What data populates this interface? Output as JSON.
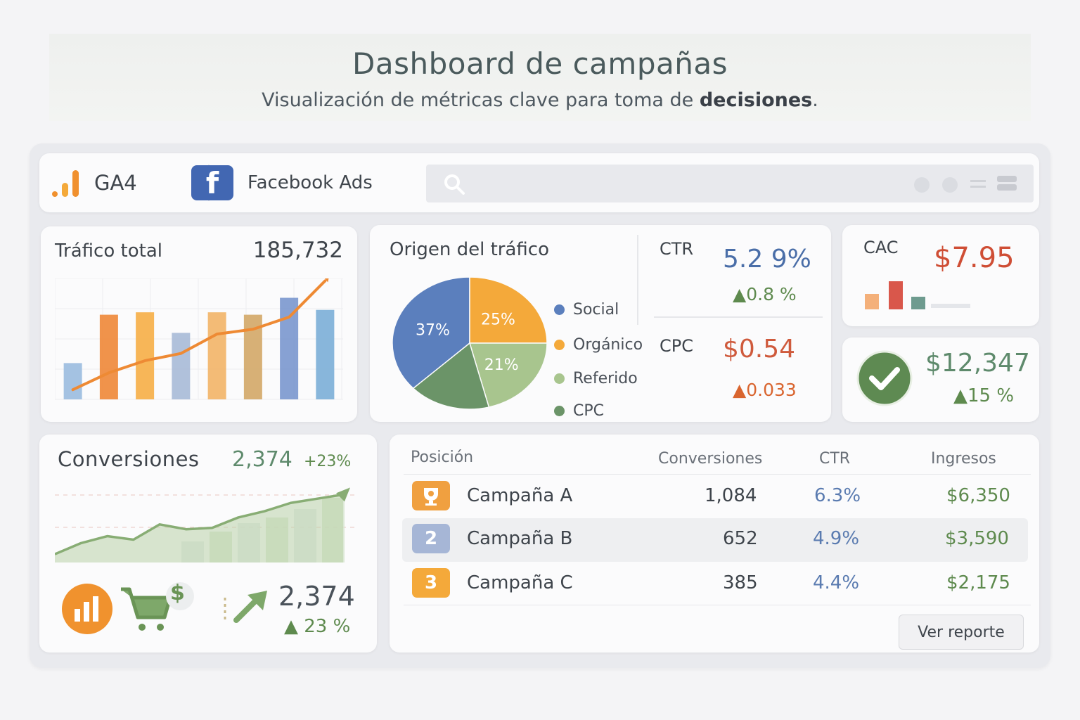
{
  "header": {
    "title": "Dashboard de campañas",
    "subtitle_main": "Visualización de métricas clave para toma de",
    "subtitle_bold": "decisiones",
    "subtitle_end": "."
  },
  "toolbar": {
    "ga4_label": "GA4",
    "facebook_label": "Facebook Ads",
    "facebook_glyph": "f"
  },
  "traffic": {
    "title": "Tráfico total",
    "value": "185,732"
  },
  "origin": {
    "title": "Origen del tráfico",
    "legend": [
      {
        "label": "Social",
        "color": "#5b7fbd"
      },
      {
        "label": "Orgánico",
        "color": "#f4a93a"
      },
      {
        "label": "Referido",
        "color": "#a8c58e"
      },
      {
        "label": "CPC",
        "color": "#6b9468"
      }
    ],
    "slice_labels": [
      "37%",
      "25%",
      "21%"
    ]
  },
  "ctr": {
    "label": "CTR",
    "value": "5.2 9%",
    "change": "▲0.8 %"
  },
  "cpc": {
    "label": "CPC",
    "value": "$0.54",
    "change": "▲0.033"
  },
  "cac": {
    "label": "CAC",
    "value": "$7.95"
  },
  "revenue": {
    "value": "$12,347",
    "change": "▲15 %"
  },
  "conversions": {
    "title": "Conversiones",
    "value": "2,374",
    "change": "+23%",
    "footer_value": "2,374",
    "footer_change": "▲ 23 %",
    "dollar_glyph": "$"
  },
  "table": {
    "headers": [
      "Posición",
      "Conversiones",
      "CTR",
      "Ingresos"
    ],
    "rows": [
      {
        "rank": "",
        "name": "Campaña A",
        "conversions": "1,084",
        "ctr": "6.3%",
        "revenue": "$6,350"
      },
      {
        "rank": "2",
        "name": "Campaña B",
        "conversions": "652",
        "ctr": "4.9%",
        "revenue": "$3,590"
      },
      {
        "rank": "3",
        "name": "Campaña C",
        "conversions": "385",
        "ctr": "4.4%",
        "revenue": "$2,175"
      }
    ],
    "report_button": "Ver reporte"
  },
  "colors": {
    "accent_orange": "#f0902e",
    "accent_blue": "#5b7fbd",
    "accent_red": "#cf5a3c",
    "accent_green": "#5e8a4e",
    "fb_blue": "#4267b2"
  },
  "chart_data": [
    {
      "type": "bar",
      "categories": [
        "1",
        "2",
        "3",
        "4",
        "5",
        "6",
        "7",
        "8"
      ],
      "values": [
        30,
        70,
        72,
        55,
        72,
        70,
        84,
        74
      ],
      "trend": [
        8,
        22,
        32,
        38,
        54,
        58,
        68,
        98
      ]
    },
    {
      "type": "pie",
      "slices": [
        {
          "label": "Social",
          "value": 37
        },
        {
          "label": "Orgánico",
          "value": 25
        },
        {
          "label": "Referido",
          "value": 21
        },
        {
          "label": "CPC",
          "value": 17
        }
      ]
    },
    {
      "type": "area",
      "values": [
        12,
        28,
        38,
        33,
        55,
        48,
        50,
        65,
        74,
        86,
        92,
        98
      ]
    }
  ]
}
